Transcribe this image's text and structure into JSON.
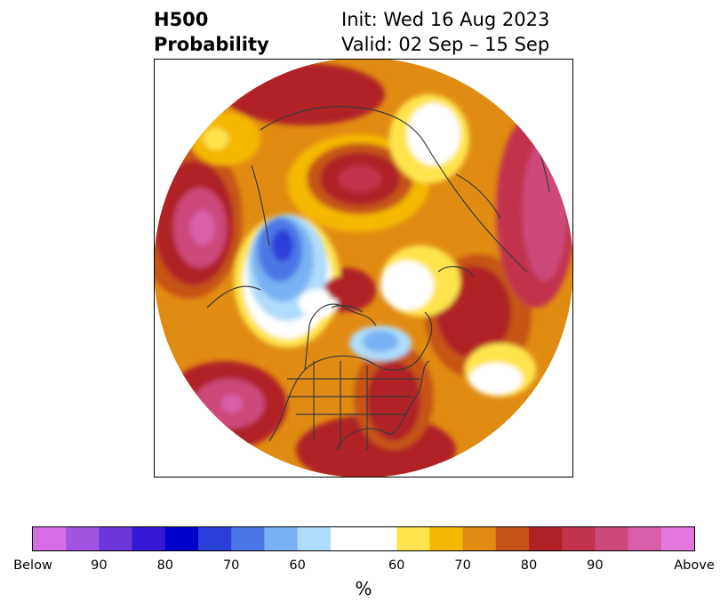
{
  "title": {
    "left_line1": "H500",
    "left_line2": "Probability",
    "right_line1": "Init: Wed 16 Aug 2023",
    "right_line2": "Valid: 02 Sep – 15 Sep"
  },
  "colorbar": {
    "unit": "%",
    "tick_labels": [
      "Below",
      "90",
      "80",
      "70",
      "60",
      "60",
      "70",
      "80",
      "90",
      "Above"
    ],
    "colors": [
      "#d66fe6",
      "#9f55e0",
      "#6b36d8",
      "#3518d6",
      "#0000cd",
      "#2a3fd8",
      "#4b78e6",
      "#78b2f2",
      "#aedcfa",
      "#ffffff",
      "#ffe44d",
      "#f4b800",
      "#e08c12",
      "#c65418",
      "#b02226",
      "#c2334e",
      "#cc4a7a",
      "#d95ea8",
      "#e477de"
    ]
  },
  "map": {
    "projection": "north-polar-stereographic",
    "outline_color": "#3a3a3a"
  }
}
